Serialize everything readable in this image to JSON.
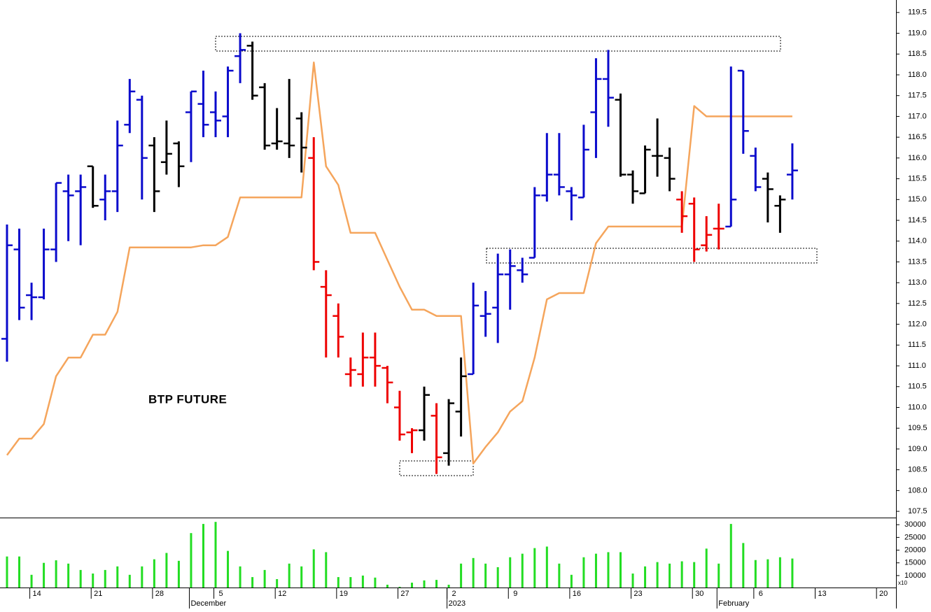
{
  "chart_data": {
    "type": "ohlc",
    "title": "BTP FUTURE",
    "categories": [
      null,
      null,
      null,
      "14",
      null,
      null,
      null,
      null,
      "21",
      null,
      null,
      null,
      null,
      "28",
      null,
      null,
      null,
      null,
      "5",
      null,
      null,
      null,
      null,
      "12",
      null,
      null,
      null,
      null,
      "19",
      null,
      null,
      null,
      null,
      "27",
      null,
      null,
      null,
      "2",
      null,
      null,
      null,
      null,
      "9",
      null,
      null,
      null,
      null,
      "16",
      null,
      null,
      null,
      null,
      "23",
      null,
      null,
      null,
      null,
      "30",
      null,
      null,
      null,
      null,
      "6",
      null,
      null,
      null,
      null,
      "13",
      null,
      null,
      null,
      null,
      "20"
    ],
    "months": [
      {
        "value": 16,
        "label": "December"
      },
      {
        "value": 37,
        "label": "2023"
      },
      {
        "value": 59,
        "label": "February"
      }
    ],
    "open": [
      111.65,
      113.8,
      112.7,
      112.65,
      113.8,
      115.2,
      115.2,
      115.8,
      115.0,
      115.2,
      116.8,
      117.4,
      116.3,
      115.9,
      116.35,
      117.1,
      117.3,
      117.1,
      117.0,
      118.45,
      118.7,
      117.7,
      116.35,
      116.35,
      116.95,
      116.0,
      112.9,
      112.2,
      110.8,
      110.8,
      111.2,
      110.95,
      110.0,
      109.4,
      109.45,
      109.8,
      108.9,
      109.9,
      110.8,
      112.2,
      112.4,
      113.2,
      113.3,
      113.6,
      115.1,
      115.6,
      115.2,
      115.05,
      117.1,
      117.9,
      117.4,
      115.6,
      115.15,
      116.05,
      116.0,
      115.0,
      114.9,
      113.9,
      114.3,
      114.35,
      118.1,
      116.05,
      115.5,
      114.85,
      115.6,
      null,
      null,
      null,
      null,
      null,
      null,
      null,
      null
    ],
    "high": [
      114.4,
      114.3,
      113.0,
      114.3,
      115.4,
      115.6,
      115.6,
      115.8,
      115.6,
      116.9,
      117.9,
      117.5,
      116.5,
      116.9,
      116.4,
      117.6,
      118.1,
      117.6,
      118.2,
      119.0,
      118.8,
      117.8,
      117.2,
      117.9,
      117.1,
      116.5,
      113.3,
      112.5,
      111.2,
      111.8,
      111.8,
      111.0,
      110.4,
      109.5,
      110.5,
      110.1,
      110.2,
      111.2,
      113.0,
      112.8,
      113.7,
      113.8,
      113.6,
      115.3,
      116.6,
      116.6,
      115.3,
      116.8,
      118.4,
      118.6,
      117.55,
      115.7,
      116.3,
      116.95,
      116.25,
      115.2,
      115.05,
      114.6,
      114.9,
      118.2,
      118.1,
      116.25,
      115.65,
      115.1,
      116.35,
      null,
      null,
      null,
      null,
      null,
      null,
      null,
      null
    ],
    "low": [
      111.1,
      112.1,
      112.1,
      112.6,
      113.5,
      114.0,
      113.9,
      114.8,
      114.5,
      114.7,
      116.6,
      115.0,
      114.7,
      115.6,
      115.3,
      115.9,
      116.5,
      116.5,
      116.5,
      117.8,
      117.4,
      116.2,
      116.2,
      116.0,
      115.65,
      113.3,
      111.2,
      111.2,
      110.5,
      110.5,
      110.5,
      110.1,
      109.2,
      108.9,
      109.2,
      108.4,
      108.6,
      109.3,
      110.8,
      111.7,
      111.55,
      112.35,
      113.0,
      113.6,
      114.95,
      115.1,
      114.5,
      115.05,
      116.0,
      116.75,
      115.55,
      114.9,
      115.15,
      115.55,
      115.2,
      114.2,
      113.5,
      113.75,
      113.8,
      114.35,
      116.1,
      115.2,
      114.45,
      114.2,
      115.0,
      null,
      null,
      null,
      null,
      null,
      null,
      null,
      null
    ],
    "close": [
      113.9,
      112.4,
      112.65,
      113.8,
      115.4,
      115.1,
      115.3,
      114.85,
      115.2,
      116.3,
      117.6,
      116.0,
      115.2,
      116.1,
      115.8,
      117.6,
      116.8,
      116.9,
      118.1,
      118.6,
      117.5,
      116.3,
      116.4,
      116.3,
      116.25,
      113.5,
      112.7,
      111.7,
      110.9,
      111.2,
      111.0,
      110.6,
      109.35,
      109.45,
      110.3,
      108.8,
      110.1,
      110.75,
      112.45,
      112.25,
      113.2,
      113.4,
      113.2,
      115.1,
      115.6,
      115.3,
      115.1,
      116.2,
      117.9,
      117.45,
      115.6,
      115.2,
      116.2,
      116.05,
      115.5,
      114.6,
      113.8,
      114.15,
      114.3,
      115.0,
      116.65,
      115.3,
      115.25,
      115.0,
      115.7,
      null,
      null,
      null,
      null,
      null,
      null,
      null,
      null
    ],
    "bar_colors": [
      "#0a0acc",
      "#0a0acc",
      "#0a0acc",
      "#0a0acc",
      "#0a0acc",
      "#0a0acc",
      "#0a0acc",
      "#000000",
      "#0a0acc",
      "#0a0acc",
      "#0a0acc",
      "#0a0acc",
      "#000000",
      "#000000",
      "#000000",
      "#0a0acc",
      "#0a0acc",
      "#0a0acc",
      "#0a0acc",
      "#0a0acc",
      "#000000",
      "#000000",
      "#000000",
      "#000000",
      "#000000",
      "#ee0000",
      "#ee0000",
      "#ee0000",
      "#ee0000",
      "#ee0000",
      "#ee0000",
      "#ee0000",
      "#ee0000",
      "#ee0000",
      "#000000",
      "#ee0000",
      "#000000",
      "#000000",
      "#0a0acc",
      "#0a0acc",
      "#0a0acc",
      "#0a0acc",
      "#0a0acc",
      "#0a0acc",
      "#0a0acc",
      "#0a0acc",
      "#0a0acc",
      "#0a0acc",
      "#0a0acc",
      "#0a0acc",
      "#000000",
      "#000000",
      "#000000",
      "#000000",
      "#000000",
      "#ee0000",
      "#ee0000",
      "#ee0000",
      "#ee0000",
      "#0a0acc",
      "#0a0acc",
      "#0a0acc",
      "#000000",
      "#000000",
      "#0a0acc",
      null,
      null,
      null,
      null,
      null,
      null,
      null,
      null
    ],
    "line": {
      "color": "#f5a55c",
      "values": [
        108.85,
        109.25,
        109.25,
        109.6,
        110.75,
        111.2,
        111.2,
        111.75,
        111.75,
        112.3,
        113.85,
        113.85,
        113.85,
        113.85,
        113.85,
        113.85,
        113.9,
        113.9,
        114.1,
        115.05,
        115.05,
        115.05,
        115.05,
        115.05,
        115.05,
        118.3,
        115.8,
        115.35,
        114.2,
        114.2,
        114.2,
        113.55,
        112.9,
        112.35,
        112.35,
        112.2,
        112.2,
        112.2,
        108.65,
        109.05,
        109.4,
        109.9,
        110.15,
        111.2,
        112.6,
        112.75,
        112.75,
        112.75,
        113.95,
        114.35,
        114.35,
        114.35,
        114.35,
        114.35,
        114.35,
        114.35,
        117.25,
        117.0,
        117.0,
        117.0,
        117.0,
        117.0,
        117.0,
        117.0,
        117.0,
        null,
        null,
        null,
        null,
        null,
        null,
        null,
        null
      ]
    },
    "ylim": [
      107.35,
      119.8
    ],
    "yticks": [
      107.5,
      {
        "value": 108,
        "label": "108.0"
      },
      108.5,
      {
        "value": 109,
        "label": "109.0"
      },
      109.5,
      {
        "value": 110,
        "label": "110.0"
      },
      110.5,
      {
        "value": 111,
        "label": "111.0"
      },
      111.5,
      {
        "value": 112,
        "label": "112.0"
      },
      112.5,
      {
        "value": 113,
        "label": "113.0"
      },
      113.5,
      {
        "value": 114,
        "label": "114.0"
      },
      114.5,
      {
        "value": 115,
        "label": "115.0"
      },
      115.5,
      {
        "value": 116,
        "label": "116.0"
      },
      116.5,
      {
        "value": 117,
        "label": "117.0"
      },
      117.5,
      {
        "value": 118,
        "label": "118.0"
      },
      118.5,
      {
        "value": 119,
        "label": "119.0"
      },
      119.5
    ],
    "volume": {
      "color": "#22dd22",
      "unit_label": "x10",
      "values": [
        17500,
        17500,
        10300,
        15000,
        16000,
        14700,
        12200,
        10800,
        12200,
        13600,
        10300,
        13600,
        16400,
        18900,
        15800,
        26700,
        30300,
        31100,
        19700,
        13600,
        9400,
        12200,
        8600,
        14700,
        13600,
        20300,
        19200,
        9400,
        9400,
        10000,
        9200,
        6400,
        5600,
        7200,
        8100,
        8300,
        6400,
        14700,
        16900,
        14700,
        13300,
        17200,
        18600,
        20800,
        21400,
        14700,
        10300,
        17200,
        18600,
        19200,
        19200,
        10800,
        13600,
        15300,
        14700,
        15600,
        15300,
        20600,
        14700,
        30300,
        22800,
        16100,
        16400,
        17200,
        16700,
        null,
        null,
        null,
        null,
        null,
        null,
        null,
        null
      ],
      "ylim": [
        5300,
        32800
      ],
      "yticks": [
        10000,
        15000,
        20000,
        25000,
        30000
      ]
    }
  }
}
